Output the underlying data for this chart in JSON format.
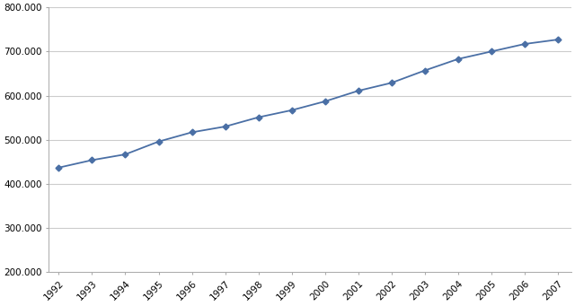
{
  "years": [
    1992,
    1993,
    1994,
    1995,
    1996,
    1997,
    1998,
    1999,
    2000,
    2001,
    2002,
    2003,
    2004,
    2005,
    2006,
    2007
  ],
  "values": [
    437000,
    454000,
    467000,
    496000,
    517000,
    530000,
    551000,
    567000,
    587000,
    611000,
    629000,
    657000,
    683000,
    700000,
    717000,
    727000
  ],
  "line_color": "#4a6fa5",
  "marker": "D",
  "marker_size": 3.5,
  "linewidth": 1.3,
  "ylim": [
    200000,
    800000
  ],
  "ytick_step": 100000,
  "background_color": "#ffffff",
  "plot_bg_color": "#ffffff",
  "grid_color": "#cccccc",
  "grid_linewidth": 0.8,
  "spine_color": "#aaaaaa",
  "tick_fontsize": 7.5,
  "figsize": [
    6.4,
    3.41
  ],
  "dpi": 100
}
